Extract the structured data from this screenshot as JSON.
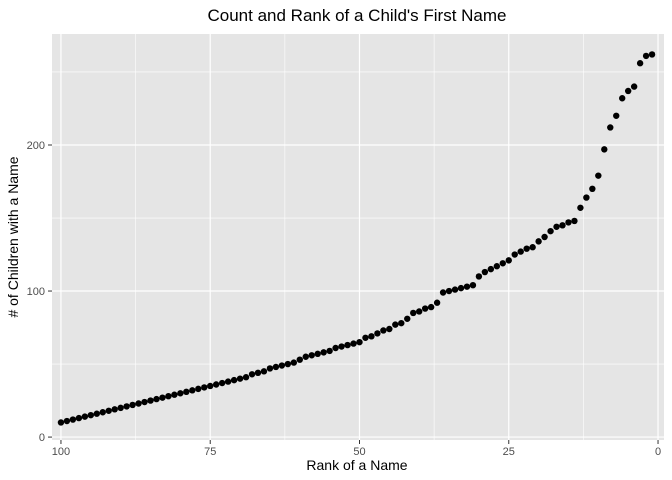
{
  "chart_data": {
    "type": "scatter",
    "title": "Count and Rank of a Child's First Name",
    "xlabel": "Rank of a Name",
    "ylabel": "# of Children with a Name",
    "x_reversed": true,
    "xlim": [
      101.5,
      -1
    ],
    "ylim": [
      -2,
      276
    ],
    "xticks": [
      100,
      75,
      50,
      25,
      0
    ],
    "xtick_labels": [
      "100",
      "75",
      "50",
      "25",
      "0"
    ],
    "yticks": [
      0,
      100,
      200
    ],
    "ytick_labels": [
      "0",
      "100",
      "200"
    ],
    "grid": true,
    "legend": "none",
    "colors": {
      "panel": "#e5e5e5",
      "grid": "#ffffff",
      "points": "#000000",
      "tick": "#333333"
    },
    "x": [
      1,
      2,
      3,
      4,
      5,
      6,
      7,
      8,
      9,
      10,
      11,
      12,
      13,
      14,
      15,
      16,
      17,
      18,
      19,
      20,
      21,
      22,
      23,
      24,
      25,
      26,
      27,
      28,
      29,
      30,
      31,
      32,
      33,
      34,
      35,
      36,
      37,
      38,
      39,
      40,
      41,
      42,
      43,
      44,
      45,
      46,
      47,
      48,
      49,
      50,
      51,
      52,
      53,
      54,
      55,
      56,
      57,
      58,
      59,
      60,
      61,
      62,
      63,
      64,
      65,
      66,
      67,
      68,
      69,
      70,
      71,
      72,
      73,
      74,
      75,
      76,
      77,
      78,
      79,
      80,
      81,
      82,
      83,
      84,
      85,
      86,
      87,
      88,
      89,
      90,
      91,
      92,
      93,
      94,
      95,
      96,
      97,
      98,
      99,
      100
    ],
    "y": [
      262,
      261,
      256,
      240,
      237,
      232,
      220,
      212,
      197,
      179,
      170,
      164,
      157,
      148,
      147,
      145,
      144,
      141,
      137,
      134,
      130,
      129,
      127,
      125,
      121,
      119,
      117,
      115,
      113,
      110,
      104,
      103,
      102,
      101,
      100,
      99,
      92,
      89,
      88,
      86,
      85,
      81,
      78,
      77,
      74,
      73,
      71,
      69,
      68,
      65,
      64,
      63,
      62,
      61,
      59,
      58,
      57,
      56,
      55,
      53,
      51,
      50,
      49,
      48,
      47,
      45,
      44,
      43,
      41,
      40,
      39,
      38,
      37,
      36,
      35,
      34,
      33,
      32,
      31,
      30,
      29,
      28,
      27,
      26,
      25,
      24,
      23,
      22,
      21,
      20,
      19,
      18,
      17,
      16,
      15,
      14,
      13,
      12,
      11,
      10
    ]
  }
}
